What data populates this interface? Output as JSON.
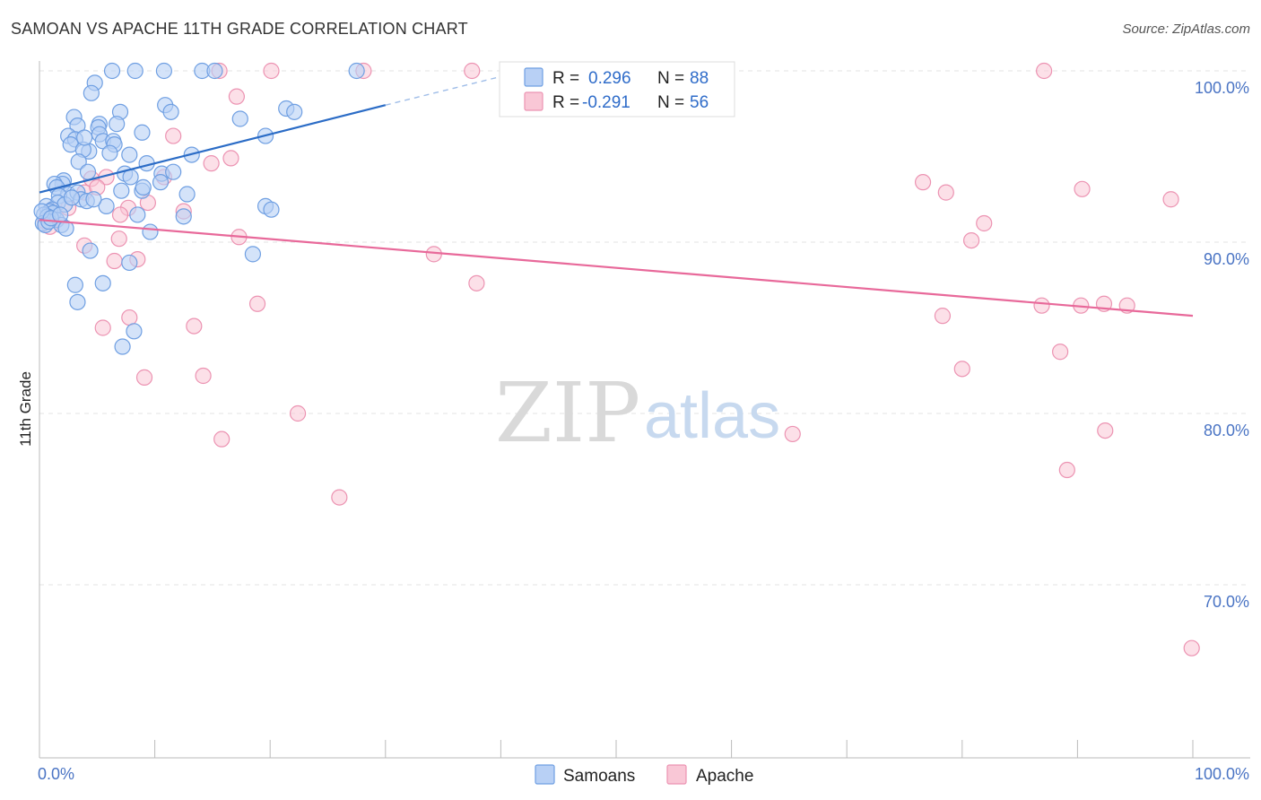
{
  "title": "SAMOAN VS APACHE 11TH GRADE CORRELATION CHART",
  "source": "Source: ZipAtlas.com",
  "watermark": {
    "part1": "ZIP",
    "part2": "atlas"
  },
  "colors": {
    "samoans_fill": "#b8d0f5",
    "samoans_stroke": "#6f9fe2",
    "samoans_line": "#2b6cc6",
    "apache_fill": "#f9c7d6",
    "apache_stroke": "#ec93b2",
    "apache_line": "#e8699a",
    "tick_text": "#4a74c4",
    "grid": "#e3e3e3"
  },
  "legend": {
    "r_label": "R =",
    "n_label": "N =",
    "samoans": {
      "r": "0.296",
      "n": "88"
    },
    "apache": {
      "r": "-0.291",
      "n": "56"
    }
  },
  "chart_data": {
    "type": "scatter",
    "title": "SAMOAN VS APACHE 11TH GRADE CORRELATION CHART",
    "xlabel": "",
    "ylabel": "11th Grade",
    "xlim": [
      0,
      100
    ],
    "ylim": [
      60,
      102
    ],
    "x_tick_labels": [
      "0.0%",
      "100.0%"
    ],
    "y_ticks": [
      70,
      80,
      90,
      100
    ],
    "y_tick_labels": [
      "70.0%",
      "80.0%",
      "90.0%",
      "100.0%"
    ],
    "series": [
      {
        "name": "Samoans",
        "trend": {
          "x0": 0,
          "y0": 92.9,
          "x1": 30,
          "y1": 98.0,
          "dashed_to_x": 42,
          "dashed_to_y": 100.0
        },
        "points": [
          [
            6.3,
            100
          ],
          [
            8.3,
            100
          ],
          [
            10.8,
            100
          ],
          [
            14.1,
            100
          ],
          [
            15.2,
            100
          ],
          [
            27.5,
            100
          ],
          [
            4.8,
            99.3
          ],
          [
            4.5,
            98.7
          ],
          [
            10.9,
            98.0
          ],
          [
            11.4,
            97.6
          ],
          [
            21.4,
            97.8
          ],
          [
            22.1,
            97.6
          ],
          [
            7.0,
            97.6
          ],
          [
            17.4,
            97.2
          ],
          [
            3.0,
            97.3
          ],
          [
            3.3,
            96.8
          ],
          [
            5.2,
            96.9
          ],
          [
            5.1,
            96.7
          ],
          [
            6.7,
            96.9
          ],
          [
            2.5,
            96.2
          ],
          [
            5.2,
            96.3
          ],
          [
            8.9,
            96.4
          ],
          [
            19.6,
            96.2
          ],
          [
            3.1,
            96.0
          ],
          [
            5.5,
            95.9
          ],
          [
            6.4,
            95.9
          ],
          [
            2.7,
            95.7
          ],
          [
            6.5,
            95.7
          ],
          [
            4.3,
            95.3
          ],
          [
            3.8,
            95.4
          ],
          [
            7.8,
            95.1
          ],
          [
            13.2,
            95.1
          ],
          [
            3.4,
            94.7
          ],
          [
            9.3,
            94.6
          ],
          [
            4.2,
            94.1
          ],
          [
            7.4,
            94.0
          ],
          [
            10.6,
            94.0
          ],
          [
            11.6,
            94.1
          ],
          [
            2.1,
            93.6
          ],
          [
            2.0,
            93.4
          ],
          [
            1.3,
            93.4
          ],
          [
            7.9,
            93.8
          ],
          [
            10.5,
            93.5
          ],
          [
            1.5,
            93.2
          ],
          [
            7.1,
            93.0
          ],
          [
            8.9,
            93.0
          ],
          [
            12.8,
            92.8
          ],
          [
            2.5,
            92.8
          ],
          [
            3.3,
            92.9
          ],
          [
            1.7,
            92.7
          ],
          [
            3.6,
            92.5
          ],
          [
            1.6,
            92.3
          ],
          [
            4.1,
            92.4
          ],
          [
            2.2,
            92.2
          ],
          [
            5.8,
            92.1
          ],
          [
            19.6,
            92.1
          ],
          [
            20.1,
            91.9
          ],
          [
            0.6,
            92.1
          ],
          [
            1.1,
            91.9
          ],
          [
            0.9,
            91.8
          ],
          [
            1.2,
            91.7
          ],
          [
            0.4,
            91.6
          ],
          [
            0.7,
            91.5
          ],
          [
            8.5,
            91.6
          ],
          [
            12.5,
            91.5
          ],
          [
            0.3,
            91.1
          ],
          [
            1.5,
            91.3
          ],
          [
            1.9,
            91.0
          ],
          [
            2.3,
            90.8
          ],
          [
            9.6,
            90.6
          ],
          [
            0.5,
            91.0
          ],
          [
            0.8,
            91.2
          ],
          [
            18.5,
            89.3
          ],
          [
            4.4,
            89.5
          ],
          [
            7.8,
            88.8
          ],
          [
            3.1,
            87.5
          ],
          [
            5.5,
            87.6
          ],
          [
            3.3,
            86.5
          ],
          [
            8.2,
            84.8
          ],
          [
            7.2,
            83.9
          ],
          [
            0.2,
            91.8
          ],
          [
            1.0,
            91.4
          ],
          [
            2.8,
            92.6
          ],
          [
            3.9,
            96.1
          ],
          [
            6.1,
            95.2
          ],
          [
            9.0,
            93.2
          ],
          [
            4.7,
            92.5
          ],
          [
            1.8,
            91.6
          ]
        ]
      },
      {
        "name": "Apache",
        "trend": {
          "x0": 0,
          "y0": 91.3,
          "x1": 100,
          "y1": 85.7
        },
        "points": [
          [
            15.6,
            100
          ],
          [
            20.1,
            100
          ],
          [
            28.1,
            100
          ],
          [
            37.5,
            100
          ],
          [
            87.1,
            100
          ],
          [
            1.1,
            91.9
          ],
          [
            17.1,
            98.5
          ],
          [
            11.6,
            96.2
          ],
          [
            14.9,
            94.6
          ],
          [
            16.6,
            94.9
          ],
          [
            5.8,
            93.8
          ],
          [
            4.5,
            93.7
          ],
          [
            3.9,
            92.9
          ],
          [
            7.7,
            92.0
          ],
          [
            9.4,
            92.3
          ],
          [
            12.5,
            91.8
          ],
          [
            7.0,
            91.6
          ],
          [
            1.5,
            91.3
          ],
          [
            0.5,
            91.2
          ],
          [
            0.9,
            90.9
          ],
          [
            17.3,
            90.3
          ],
          [
            6.9,
            90.2
          ],
          [
            3.9,
            89.8
          ],
          [
            6.5,
            88.9
          ],
          [
            8.5,
            89.0
          ],
          [
            34.2,
            89.3
          ],
          [
            37.9,
            87.6
          ],
          [
            18.9,
            86.4
          ],
          [
            7.8,
            85.6
          ],
          [
            5.5,
            85.0
          ],
          [
            13.4,
            85.1
          ],
          [
            14.2,
            82.2
          ],
          [
            9.1,
            82.1
          ],
          [
            22.4,
            80.0
          ],
          [
            15.8,
            78.5
          ],
          [
            26.0,
            75.1
          ],
          [
            76.6,
            93.5
          ],
          [
            78.6,
            92.9
          ],
          [
            90.4,
            93.1
          ],
          [
            98.1,
            92.5
          ],
          [
            81.9,
            91.1
          ],
          [
            80.8,
            90.1
          ],
          [
            78.3,
            85.7
          ],
          [
            86.9,
            86.3
          ],
          [
            90.3,
            86.3
          ],
          [
            92.3,
            86.4
          ],
          [
            94.3,
            86.3
          ],
          [
            88.5,
            83.6
          ],
          [
            80.0,
            82.6
          ],
          [
            65.3,
            78.8
          ],
          [
            92.4,
            79.0
          ],
          [
            89.1,
            76.7
          ],
          [
            99.9,
            66.3
          ],
          [
            5.0,
            93.2
          ],
          [
            2.5,
            92.0
          ],
          [
            10.8,
            93.8
          ]
        ]
      }
    ]
  },
  "bottom_legend": {
    "samoans": "Samoans",
    "apache": "Apache"
  }
}
